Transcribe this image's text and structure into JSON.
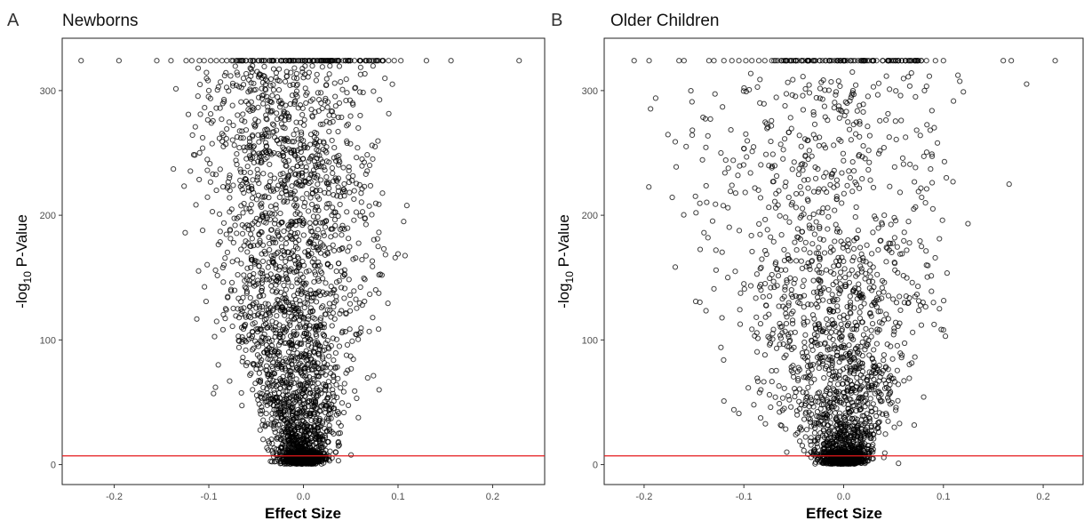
{
  "chart_data": [
    {
      "type": "scatter",
      "panel_label": "A",
      "title": "Newborns",
      "xlabel": "Effect Size",
      "ylabel_main": "-log",
      "ylabel_sub": "10",
      "ylabel_tail": " P-Value",
      "xlim": [
        -0.255,
        0.255
      ],
      "ylim": [
        -16,
        342
      ],
      "xticks": [
        -0.2,
        -0.1,
        0.0,
        0.1,
        0.2
      ],
      "xtick_labels": [
        "-0.2",
        "-0.1",
        "0.0",
        "0.1",
        "0.2"
      ],
      "yticks": [
        0,
        100,
        200,
        300
      ],
      "ytick_labels": [
        "0",
        "100",
        "200",
        "300"
      ],
      "threshold_y": 7,
      "threshold_color": "#e41a1c",
      "grid": false,
      "marker": "open circle",
      "cap_y": 324,
      "cap_points_x": [
        -0.235,
        -0.195,
        -0.155,
        -0.14,
        -0.124,
        -0.118,
        -0.11,
        -0.105,
        -0.098,
        -0.092,
        -0.086,
        -0.081,
        -0.076,
        -0.071,
        -0.066,
        -0.061,
        -0.056,
        -0.052,
        -0.048,
        -0.044,
        -0.04,
        -0.036,
        -0.032,
        -0.028,
        -0.024,
        -0.019,
        -0.014,
        -0.008,
        -0.003,
        0.002,
        0.007,
        0.012,
        0.018,
        0.024,
        0.03,
        0.036,
        0.042,
        0.048,
        0.054,
        0.06,
        0.066,
        0.072,
        0.078,
        0.084,
        0.09,
        0.096,
        0.103,
        0.13,
        0.156,
        0.228
      ],
      "points": [
        [
          -0.125,
          186
        ],
        [
          -0.092,
          220
        ],
        [
          -0.09,
          80
        ],
        [
          -0.093,
          62
        ],
        [
          -0.095,
          57
        ],
        [
          -0.088,
          187
        ],
        [
          -0.082,
          257
        ],
        [
          -0.1,
          300
        ],
        [
          -0.078,
          67
        ],
        [
          0.106,
          195
        ],
        [
          0.08,
          60
        ],
        [
          0.083,
          152
        ],
        [
          0.079,
          175
        ],
        [
          0.085,
          173
        ],
        [
          0.097,
          166
        ],
        [
          0.1,
          169
        ],
        [
          0.07,
          240
        ],
        [
          0.06,
          280
        ],
        [
          0.058,
          270
        ],
        [
          0.052,
          290
        ],
        [
          0.045,
          292
        ],
        [
          0.038,
          290
        ],
        [
          0.062,
          245
        ],
        [
          0.066,
          233
        ],
        [
          0.03,
          200
        ],
        [
          0.025,
          170
        ],
        [
          0.04,
          142
        ]
      ],
      "cloud": {
        "center_x": -0.026,
        "right_arm_center_x": 0.02,
        "max_y_left": 320,
        "max_y_right": 260
      }
    },
    {
      "type": "scatter",
      "panel_label": "B",
      "title": "Older Children",
      "xlabel": "Effect Size",
      "ylabel_main": "-log",
      "ylabel_sub": "10",
      "ylabel_tail": " P-Value",
      "xlim": [
        -0.24,
        0.24
      ],
      "ylim": [
        -16,
        342
      ],
      "xticks": [
        -0.2,
        -0.1,
        0.0,
        0.1,
        0.2
      ],
      "xtick_labels": [
        "-0.2",
        "-0.1",
        "0.0",
        "0.1",
        "0.2"
      ],
      "yticks": [
        0,
        100,
        200,
        300
      ],
      "ytick_labels": [
        "0",
        "100",
        "200",
        "300"
      ],
      "threshold_y": 7,
      "threshold_color": "#e41a1c",
      "grid": false,
      "marker": "open circle",
      "cap_y": 324,
      "cap_points_x": [
        -0.21,
        -0.195,
        -0.165,
        -0.16,
        -0.135,
        -0.13,
        -0.12,
        -0.112,
        -0.105,
        -0.098,
        -0.092,
        -0.085,
        -0.079,
        -0.072,
        -0.066,
        -0.06,
        -0.054,
        -0.048,
        -0.042,
        -0.036,
        -0.03,
        -0.024,
        -0.018,
        -0.012,
        -0.006,
        0.001,
        0.018,
        0.03,
        0.044,
        0.052,
        0.062,
        0.068,
        0.075,
        0.083,
        0.092,
        0.1,
        0.16,
        0.168,
        0.212
      ],
      "points": [
        [
          -0.152,
          291
        ],
        [
          -0.148,
          202
        ],
        [
          -0.14,
          186
        ],
        [
          -0.136,
          182
        ],
        [
          -0.123,
          250
        ],
        [
          -0.119,
          234
        ],
        [
          -0.112,
          224
        ],
        [
          -0.116,
          206
        ],
        [
          -0.128,
          172
        ],
        [
          -0.13,
          141
        ],
        [
          -0.123,
          94
        ],
        [
          -0.12,
          51
        ],
        [
          -0.11,
          44
        ],
        [
          -0.105,
          41
        ],
        [
          -0.09,
          48
        ],
        [
          -0.083,
          60
        ],
        [
          -0.1,
          145
        ],
        [
          -0.106,
          232
        ],
        [
          0.101,
          243
        ],
        [
          0.099,
          196
        ],
        [
          0.102,
          103
        ],
        [
          0.1,
          108
        ],
        [
          0.096,
          125
        ],
        [
          0.09,
          130
        ],
        [
          0.088,
          139
        ],
        [
          0.083,
          160
        ],
        [
          0.078,
          175
        ],
        [
          0.075,
          219
        ],
        [
          0.06,
          241
        ],
        [
          0.057,
          296
        ],
        [
          0.072,
          295
        ],
        [
          0.12,
          299
        ],
        [
          0.081,
          300
        ],
        [
          0.094,
          258
        ],
        [
          0.082,
          210
        ],
        [
          0.065,
          195
        ],
        [
          0.055,
          1
        ],
        [
          -0.057,
          10
        ]
      ],
      "cloud": {
        "center_x": -0.02,
        "right_arm_center_x": 0.022,
        "max_y_left": 315,
        "max_y_right": 180
      }
    }
  ]
}
